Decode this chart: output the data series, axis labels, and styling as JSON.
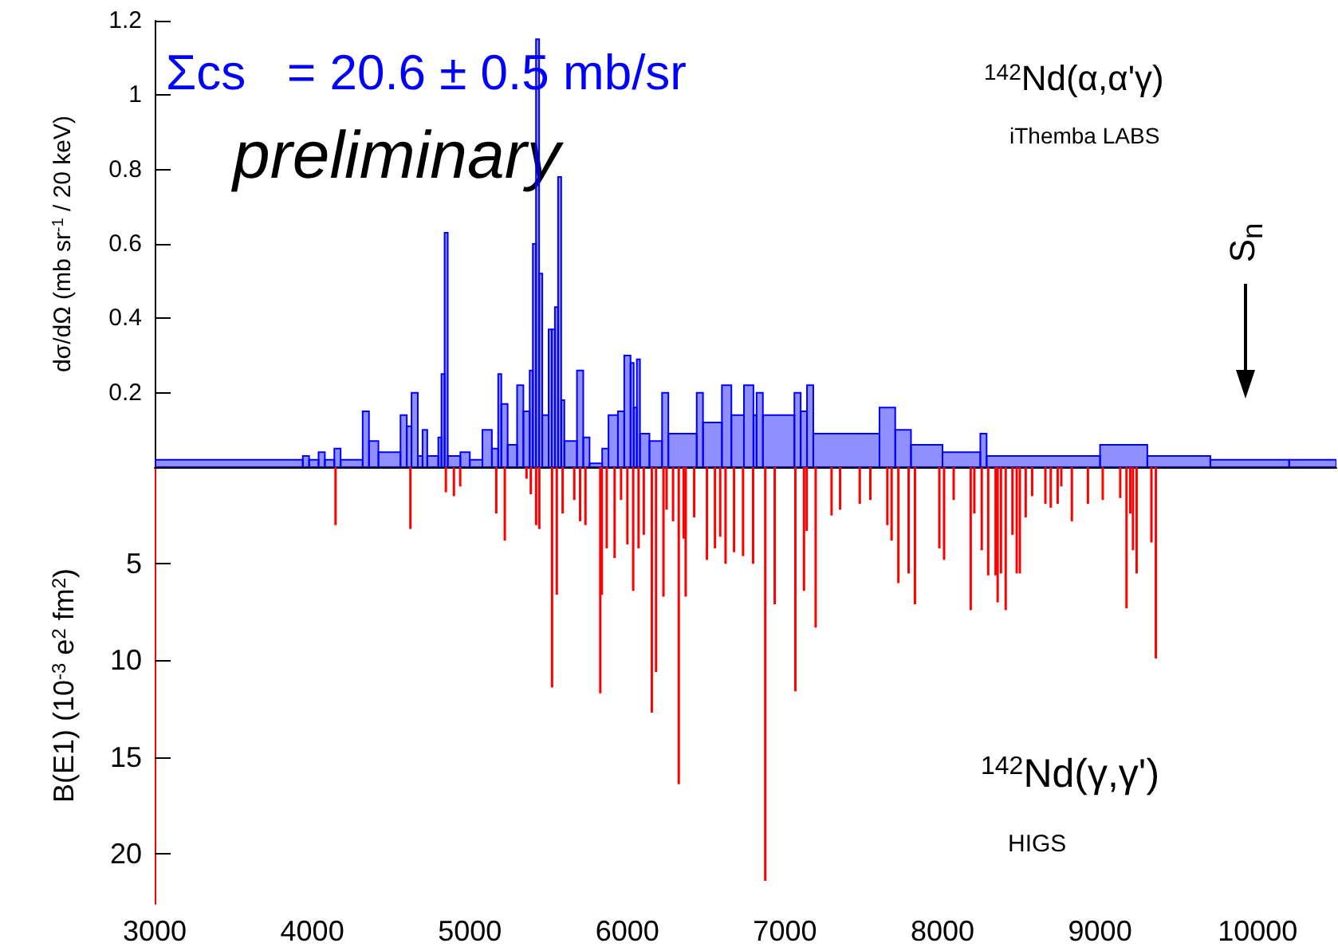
{
  "chart_data": [
    {
      "type": "histogram",
      "color": "#0000ff",
      "ylabel": "dσ/dΩ (mb sr$^{-1}$ / 20 keV)",
      "tick_labels": "y",
      "xlim": [
        3000,
        10500
      ],
      "xticks": [
        3000,
        4000,
        5000,
        6000,
        7000,
        8000,
        9000,
        10000
      ],
      "ylim": [
        0,
        1.2
      ],
      "yticks": [
        0.2,
        0.4,
        0.6,
        0.8,
        1,
        1.2
      ],
      "bins": [
        3000,
        3940,
        3980,
        4040,
        4080,
        4140,
        4180,
        4320,
        4360,
        4420,
        4560,
        4600,
        4630,
        4670,
        4700,
        4730,
        4800,
        4820,
        4840,
        4860,
        4940,
        5000,
        5080,
        5140,
        5180,
        5200,
        5240,
        5300,
        5340,
        5380,
        5400,
        5420,
        5440,
        5460,
        5500,
        5520,
        5540,
        5560,
        5580,
        5600,
        5680,
        5720,
        5760,
        5840,
        5880,
        5940,
        5980,
        6020,
        6040,
        6060,
        6080,
        6140,
        6220,
        6260,
        6440,
        6480,
        6600,
        6660,
        6740,
        6800,
        6820,
        6860,
        7060,
        7100,
        7140,
        7180,
        7600,
        7700,
        7800,
        8000,
        8240,
        8280,
        9000,
        9300,
        9700,
        10200,
        10500
      ],
      "values": [
        0.02,
        0.03,
        0.02,
        0.04,
        0.02,
        0.05,
        0.02,
        0.15,
        0.07,
        0.04,
        0.14,
        0.11,
        0.2,
        0.03,
        0.1,
        0.03,
        0.08,
        0.25,
        0.63,
        0.03,
        0.04,
        0.02,
        0.1,
        0.05,
        0.25,
        0.17,
        0.06,
        0.22,
        0.15,
        0.26,
        0.6,
        1.15,
        0.52,
        0.14,
        0.37,
        0.37,
        0.43,
        0.78,
        0.18,
        0.07,
        0.26,
        0.08,
        0.01,
        0.05,
        0.14,
        0.15,
        0.3,
        0.28,
        0.16,
        0.29,
        0.09,
        0.07,
        0.2,
        0.09,
        0.2,
        0.12,
        0.22,
        0.14,
        0.22,
        0.14,
        0.2,
        0.14,
        0.2,
        0.15,
        0.22,
        0.09,
        0.16,
        0.1,
        0.06,
        0.04,
        0.09,
        0.03,
        0.06,
        0.03,
        0.02,
        0.02
      ],
      "annotations": [
        "Σcs   = 20.6 ± 0.5 mb/sr",
        "preliminary",
        "$^{142}$Nd(α,α'γ)",
        "iThemba LABS",
        "S$_{n}$"
      ]
    },
    {
      "type": "bar",
      "color": "#ff0000",
      "ylabel": "B(E1) (10$^{-3}$ e$^{2}$ fm$^{2}$)",
      "xlim": [
        3000,
        10500
      ],
      "xticks": [
        3000,
        4000,
        5000,
        6000,
        7000,
        8000,
        9000,
        10000
      ],
      "ylim": [
        22.6,
        0
      ],
      "yticks": [
        5,
        10,
        15,
        20
      ],
      "x": [
        4148,
        4623,
        4848,
        4899,
        4939,
        5168,
        5222,
        5360,
        5387,
        5421,
        5441,
        5522,
        5552,
        5589,
        5663,
        5700,
        5734,
        5828,
        5838,
        5869,
        5919,
        5960,
        6000,
        6037,
        6071,
        6104,
        6155,
        6182,
        6229,
        6249,
        6290,
        6326,
        6357,
        6370,
        6424,
        6505,
        6556,
        6589,
        6623,
        6677,
        6734,
        6798,
        6875,
        6929,
        6935,
        7066,
        7121,
        7138,
        7195,
        7296,
        7350,
        7475,
        7542,
        7650,
        7677,
        7720,
        7785,
        7825,
        7980,
        8010,
        8071,
        8179,
        8202,
        8249,
        8290,
        8337,
        8350,
        8371,
        8401,
        8444,
        8471,
        8491,
        8528,
        8569,
        8653,
        8687,
        8731,
        8754,
        8821,
        8923,
        9017,
        9128,
        9168,
        9192,
        9209,
        9232,
        9326,
        9354
      ],
      "values": [
        3.0,
        3.2,
        1.3,
        1.5,
        1.0,
        2.4,
        3.8,
        0.6,
        1.4,
        3.0,
        3.2,
        11.4,
        6.6,
        2.4,
        1.7,
        2.8,
        3.0,
        11.7,
        6.6,
        4.2,
        4.7,
        1.7,
        4.0,
        6.4,
        4.2,
        3.5,
        12.7,
        10.6,
        6.7,
        2.2,
        2.8,
        16.4,
        3.7,
        6.7,
        2.6,
        4.8,
        4.2,
        3.6,
        5.0,
        4.4,
        4.6,
        5.0,
        21.4,
        null,
        7.1,
        11.6,
        6.4,
        3.3,
        8.3,
        2.5,
        2.2,
        1.9,
        1.7,
        3.0,
        3.8,
        6.0,
        5.5,
        7.1,
        4.2,
        4.8,
        1.7,
        7.4,
        2.4,
        4.3,
        5.6,
        5.6,
        7.0,
        5.5,
        7.4,
        3.5,
        5.5,
        5.5,
        2.6,
        1.5,
        1.9,
        2.1,
        1.9,
        1.0,
        2.8,
        1.9,
        1.7,
        1.6,
        7.3,
        2.4,
        4.3,
        5.5,
        3.9,
        9.9
      ],
      "annotations": [
        "$^{142}$Nd(γ,γ')",
        "HIGS"
      ]
    }
  ]
}
